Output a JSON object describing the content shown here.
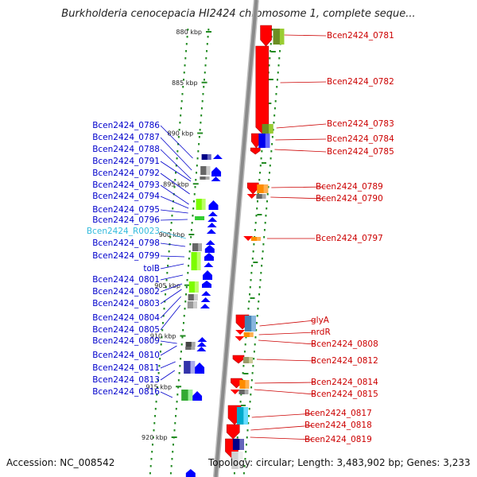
{
  "title": "Burkholderia cenocepacia HI2424 chromosome 1, complete seque...",
  "footer": {
    "accession": "Accession: NC_008542",
    "topology": "Topology: circular; Length: 3,483,902 bp; Genes: 3,233"
  },
  "colors": {
    "left_label": "#0000cc",
    "rna_label": "#33bbdd",
    "right_label": "#cc0000",
    "reverse_strand": "#ff0000",
    "forward_strand": "#0000ff",
    "backbone": "#8a8a8a",
    "tick_dot": "#228b22"
  },
  "axis": {
    "ticks": [
      {
        "kbp": 880,
        "label": "880 kbp"
      },
      {
        "kbp": 885,
        "label": "885 kbp"
      },
      {
        "kbp": 890,
        "label": "890 kbp"
      },
      {
        "kbp": 895,
        "label": "895 kbp"
      },
      {
        "kbp": 900,
        "label": "900 kbp"
      },
      {
        "kbp": 905,
        "label": "905 kbp"
      },
      {
        "kbp": 910,
        "label": "910 kbp"
      },
      {
        "kbp": 915,
        "label": "915 kbp"
      },
      {
        "kbp": 920,
        "label": "920 kbp"
      }
    ]
  },
  "left_labels": [
    {
      "text": "Bcen2424_0786",
      "type": "gene"
    },
    {
      "text": "Bcen2424_0787",
      "type": "gene"
    },
    {
      "text": "Bcen2424_0788",
      "type": "gene"
    },
    {
      "text": "Bcen2424_0791",
      "type": "gene"
    },
    {
      "text": "Bcen2424_0792",
      "type": "gene"
    },
    {
      "text": "Bcen2424_0793",
      "type": "gene"
    },
    {
      "text": "Bcen2424_0794",
      "type": "gene"
    },
    {
      "text": "Bcen2424_0795",
      "type": "gene"
    },
    {
      "text": "Bcen2424_0796",
      "type": "gene"
    },
    {
      "text": "Bcen2424_R0023",
      "type": "rna"
    },
    {
      "text": "Bcen2424_0798",
      "type": "gene"
    },
    {
      "text": "Bcen2424_0799",
      "type": "gene"
    },
    {
      "text": "tolB",
      "type": "gene"
    },
    {
      "text": "Bcen2424_0801",
      "type": "gene"
    },
    {
      "text": "Bcen2424_0802",
      "type": "gene"
    },
    {
      "text": "Bcen2424_0803",
      "type": "gene"
    },
    {
      "text": "Bcen2424_0804",
      "type": "gene"
    },
    {
      "text": "Bcen2424_0805",
      "type": "gene"
    },
    {
      "text": "Bcen2424_0809",
      "type": "gene"
    },
    {
      "text": "Bcen2424_0810",
      "type": "gene"
    },
    {
      "text": "Bcen2424_0811",
      "type": "gene"
    },
    {
      "text": "Bcen2424_0813",
      "type": "gene"
    },
    {
      "text": "Bcen2424_0816",
      "type": "gene"
    }
  ],
  "right_labels": [
    {
      "text": "Bcen2424_0781"
    },
    {
      "text": "Bcen2424_0782"
    },
    {
      "text": "Bcen2424_0783"
    },
    {
      "text": "Bcen2424_0784"
    },
    {
      "text": "Bcen2424_0785"
    },
    {
      "text": "Bcen2424_0789"
    },
    {
      "text": "Bcen2424_0790"
    },
    {
      "text": "Bcen2424_0797"
    },
    {
      "text": "glyA"
    },
    {
      "text": "nrdR"
    },
    {
      "text": "Bcen2424_0808"
    },
    {
      "text": "Bcen2424_0812"
    },
    {
      "text": "Bcen2424_0814"
    },
    {
      "text": "Bcen2424_0815"
    },
    {
      "text": "Bcen2424_0817"
    },
    {
      "text": "Bcen2424_0818"
    },
    {
      "text": "Bcen2424_0819"
    }
  ]
}
